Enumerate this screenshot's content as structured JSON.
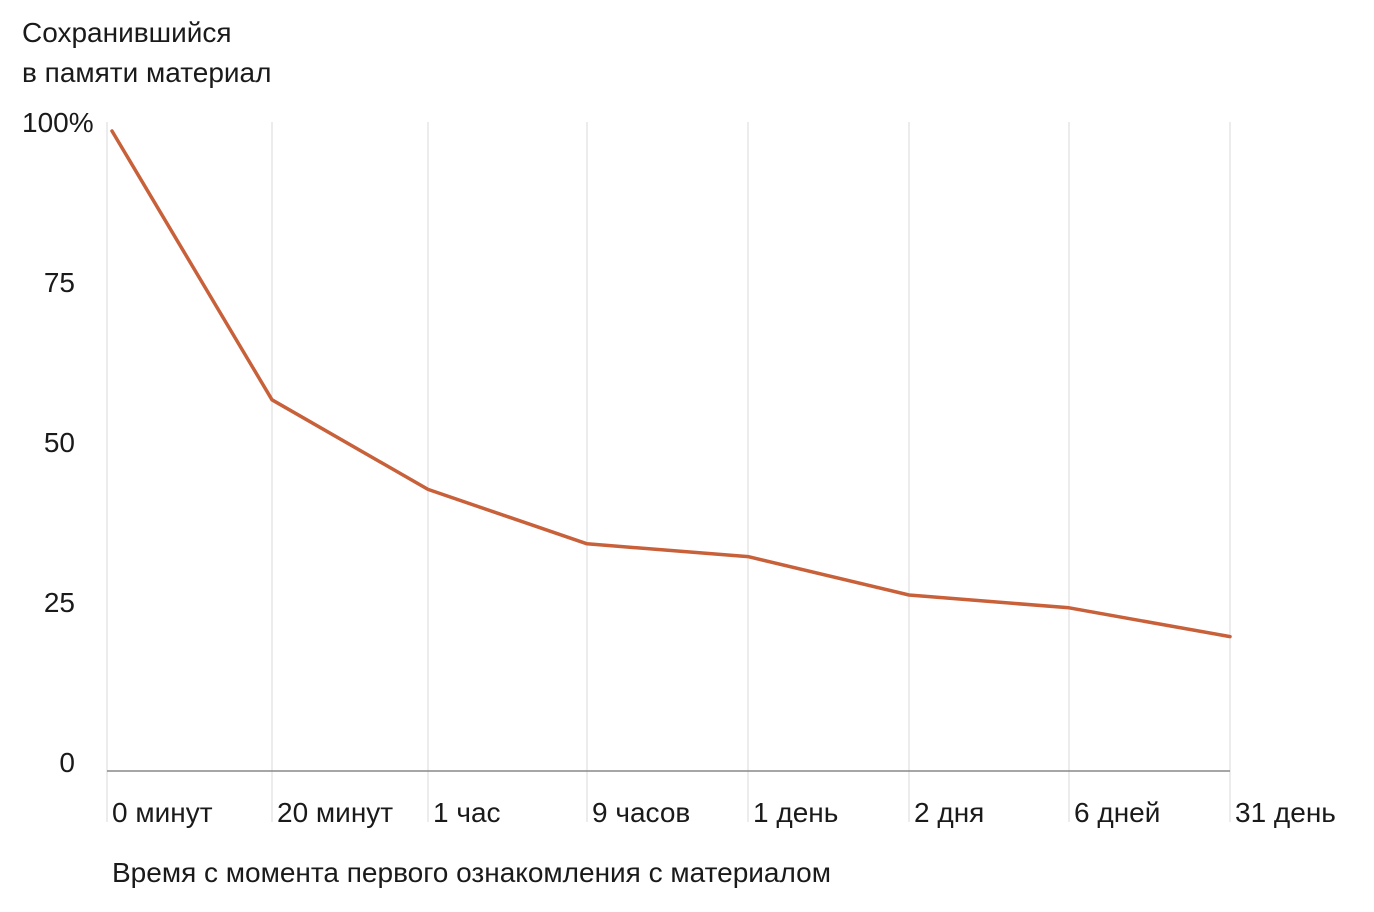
{
  "chart_data": {
    "type": "line",
    "title": "",
    "ylabel_lines": [
      "Сохранившийся",
      "в памяти материал"
    ],
    "xlabel": "Время с момента первого ознакомления с материалом",
    "categories": [
      "0 минут",
      "20 минут",
      "1 час",
      "9 часов",
      "1 день",
      "2 дня",
      "6 дней",
      "31 день"
    ],
    "series": [
      {
        "values": [
          100,
          58,
          44,
          35.5,
          33.5,
          27.5,
          25.5,
          21
        ]
      }
    ],
    "yticks": [
      {
        "value": 100,
        "label": "100%"
      },
      {
        "value": 75,
        "label": "75"
      },
      {
        "value": 50,
        "label": "50"
      },
      {
        "value": 25,
        "label": "25"
      },
      {
        "value": 0,
        "label": "0"
      }
    ],
    "ylim": [
      0,
      100
    ],
    "grid": "vertical",
    "colors": {
      "line": "#c8603a",
      "grid": "#d9d9d9",
      "axis": "#888888",
      "text": "#1a1a1a"
    }
  }
}
